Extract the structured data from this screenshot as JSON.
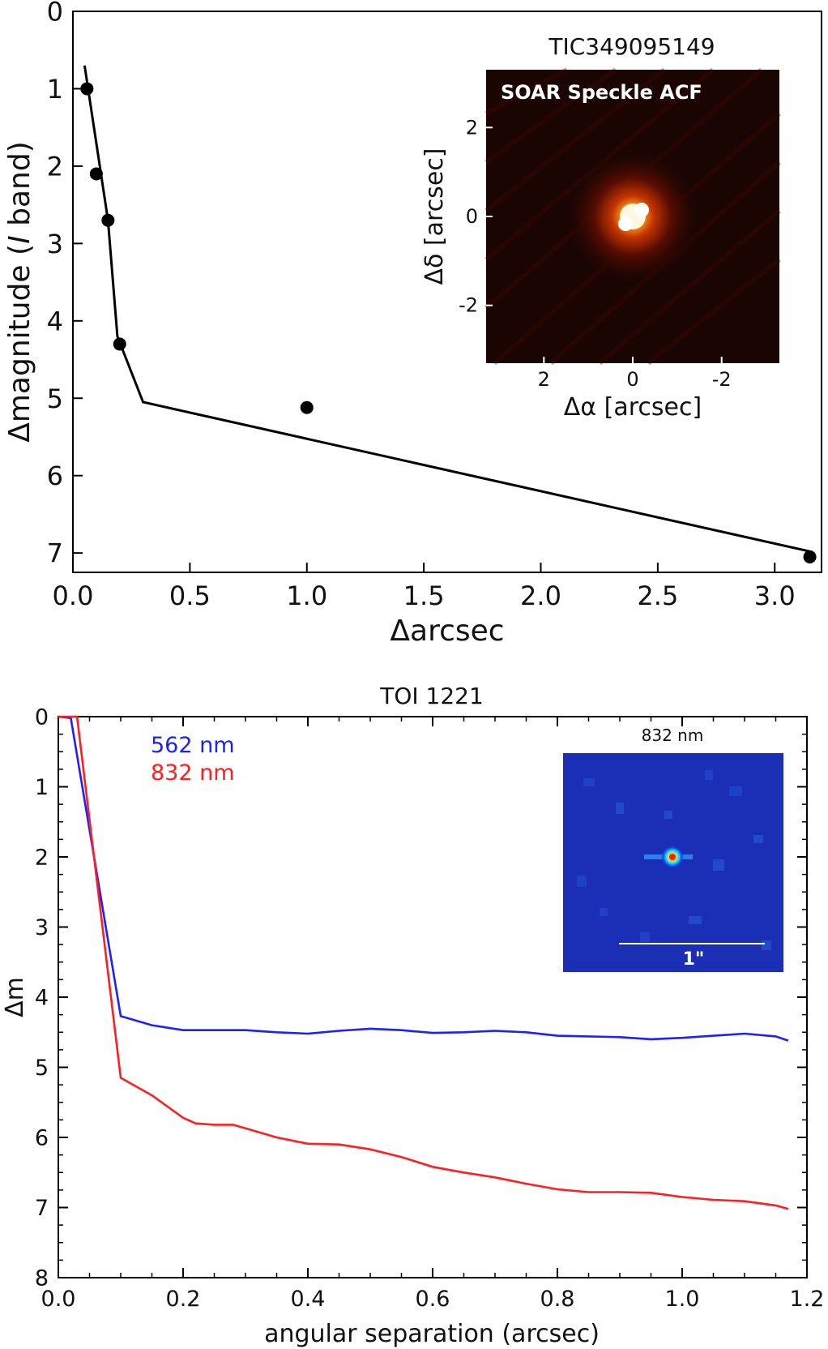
{
  "chart_data": [
    {
      "type": "scatter",
      "title": "",
      "xlabel": "Δarcsec",
      "ylabel": "Δmagnitude (I band)",
      "xlim": [
        0.0,
        3.2
      ],
      "ylim": [
        7.25,
        0
      ],
      "y_inverted": true,
      "xticks": [
        "0.0",
        "0.5",
        "1.0",
        "1.5",
        "2.0",
        "2.5",
        "3.0"
      ],
      "xtick_values": [
        0.0,
        0.5,
        1.0,
        1.5,
        2.0,
        2.5,
        3.0
      ],
      "yticks": [
        "0",
        "1",
        "2",
        "3",
        "4",
        "5",
        "6",
        "7"
      ],
      "ytick_values": [
        0,
        1,
        2,
        3,
        4,
        5,
        6,
        7
      ],
      "series": [
        {
          "type": "scatter",
          "color": "#000000",
          "points": [
            {
              "x": 0.06,
              "y": 1.0
            },
            {
              "x": 0.1,
              "y": 2.1
            },
            {
              "x": 0.15,
              "y": 2.7
            },
            {
              "x": 0.2,
              "y": 4.3
            },
            {
              "x": 1.0,
              "y": 5.12
            },
            {
              "x": 3.15,
              "y": 7.05
            }
          ]
        },
        {
          "type": "line",
          "color": "#000000",
          "points": [
            {
              "x": 0.05,
              "y": 0.7
            },
            {
              "x": 0.15,
              "y": 2.7
            },
            {
              "x": 0.19,
              "y": 4.2
            },
            {
              "x": 0.3,
              "y": 5.05
            },
            {
              "x": 3.15,
              "y": 6.98
            }
          ]
        }
      ],
      "inset": {
        "title": "TIC349095149",
        "label": "SOAR Speckle ACF",
        "xlabel": "Δα [arcsec]",
        "ylabel": "Δδ [arcsec]",
        "xticks": [
          "2",
          "0",
          "-2"
        ],
        "xtick_values": [
          2,
          0,
          -2
        ],
        "yticks": [
          "2",
          "0",
          "-2"
        ],
        "ytick_values": [
          2,
          0,
          -2
        ],
        "xlim": [
          3.3,
          -3.3
        ],
        "ylim": [
          -3.3,
          3.3
        ],
        "colormap": "hot",
        "background": "#1a0503"
      }
    },
    {
      "type": "line",
      "title": "TOI 1221",
      "xlabel": "angular separation (arcsec)",
      "ylabel": "Δm",
      "xlim": [
        0.0,
        1.2
      ],
      "ylim": [
        8,
        0
      ],
      "y_inverted": true,
      "xticks": [
        "0.0",
        "0.2",
        "0.4",
        "0.6",
        "0.8",
        "1.0",
        "1.2"
      ],
      "xtick_values": [
        0.0,
        0.2,
        0.4,
        0.6,
        0.8,
        1.0,
        1.2
      ],
      "yticks": [
        "0",
        "1",
        "2",
        "3",
        "4",
        "5",
        "6",
        "7",
        "8"
      ],
      "ytick_values": [
        0,
        1,
        2,
        3,
        4,
        5,
        6,
        7,
        8
      ],
      "legend": [
        {
          "name": "562 nm",
          "color": "#0000ff"
        },
        {
          "name": "832 nm",
          "color": "#ff0000"
        }
      ],
      "legend_position": "top-left",
      "series": [
        {
          "name": "562 nm",
          "color": "#1f1fff",
          "points": [
            {
              "x": 0.0,
              "y": 0.0
            },
            {
              "x": 0.02,
              "y": 0.02
            },
            {
              "x": 0.1,
              "y": 4.27
            },
            {
              "x": 0.15,
              "y": 4.4
            },
            {
              "x": 0.2,
              "y": 4.47
            },
            {
              "x": 0.25,
              "y": 4.47
            },
            {
              "x": 0.3,
              "y": 4.47
            },
            {
              "x": 0.35,
              "y": 4.5
            },
            {
              "x": 0.4,
              "y": 4.52
            },
            {
              "x": 0.45,
              "y": 4.48
            },
            {
              "x": 0.5,
              "y": 4.45
            },
            {
              "x": 0.55,
              "y": 4.47
            },
            {
              "x": 0.6,
              "y": 4.51
            },
            {
              "x": 0.65,
              "y": 4.5
            },
            {
              "x": 0.7,
              "y": 4.48
            },
            {
              "x": 0.75,
              "y": 4.5
            },
            {
              "x": 0.8,
              "y": 4.55
            },
            {
              "x": 0.85,
              "y": 4.56
            },
            {
              "x": 0.9,
              "y": 4.57
            },
            {
              "x": 0.95,
              "y": 4.6
            },
            {
              "x": 1.0,
              "y": 4.58
            },
            {
              "x": 1.05,
              "y": 4.55
            },
            {
              "x": 1.1,
              "y": 4.52
            },
            {
              "x": 1.15,
              "y": 4.56
            },
            {
              "x": 1.17,
              "y": 4.62
            }
          ]
        },
        {
          "name": "832 nm",
          "color": "#ff1f1f",
          "points": [
            {
              "x": 0.0,
              "y": 0.0
            },
            {
              "x": 0.03,
              "y": 0.0
            },
            {
              "x": 0.1,
              "y": 5.15
            },
            {
              "x": 0.15,
              "y": 5.4
            },
            {
              "x": 0.2,
              "y": 5.72
            },
            {
              "x": 0.22,
              "y": 5.8
            },
            {
              "x": 0.25,
              "y": 5.82
            },
            {
              "x": 0.28,
              "y": 5.82
            },
            {
              "x": 0.3,
              "y": 5.87
            },
            {
              "x": 0.35,
              "y": 6.0
            },
            {
              "x": 0.4,
              "y": 6.09
            },
            {
              "x": 0.45,
              "y": 6.1
            },
            {
              "x": 0.5,
              "y": 6.17
            },
            {
              "x": 0.55,
              "y": 6.28
            },
            {
              "x": 0.6,
              "y": 6.42
            },
            {
              "x": 0.65,
              "y": 6.5
            },
            {
              "x": 0.7,
              "y": 6.57
            },
            {
              "x": 0.75,
              "y": 6.66
            },
            {
              "x": 0.8,
              "y": 6.74
            },
            {
              "x": 0.85,
              "y": 6.78
            },
            {
              "x": 0.9,
              "y": 6.78
            },
            {
              "x": 0.95,
              "y": 6.79
            },
            {
              "x": 1.0,
              "y": 6.85
            },
            {
              "x": 1.05,
              "y": 6.89
            },
            {
              "x": 1.1,
              "y": 6.91
            },
            {
              "x": 1.15,
              "y": 6.97
            },
            {
              "x": 1.17,
              "y": 7.02
            }
          ]
        }
      ],
      "inset": {
        "title": "832 nm",
        "scalebar_label": "1\"",
        "colormap": "jet",
        "background": "#1a2fb5"
      }
    }
  ]
}
